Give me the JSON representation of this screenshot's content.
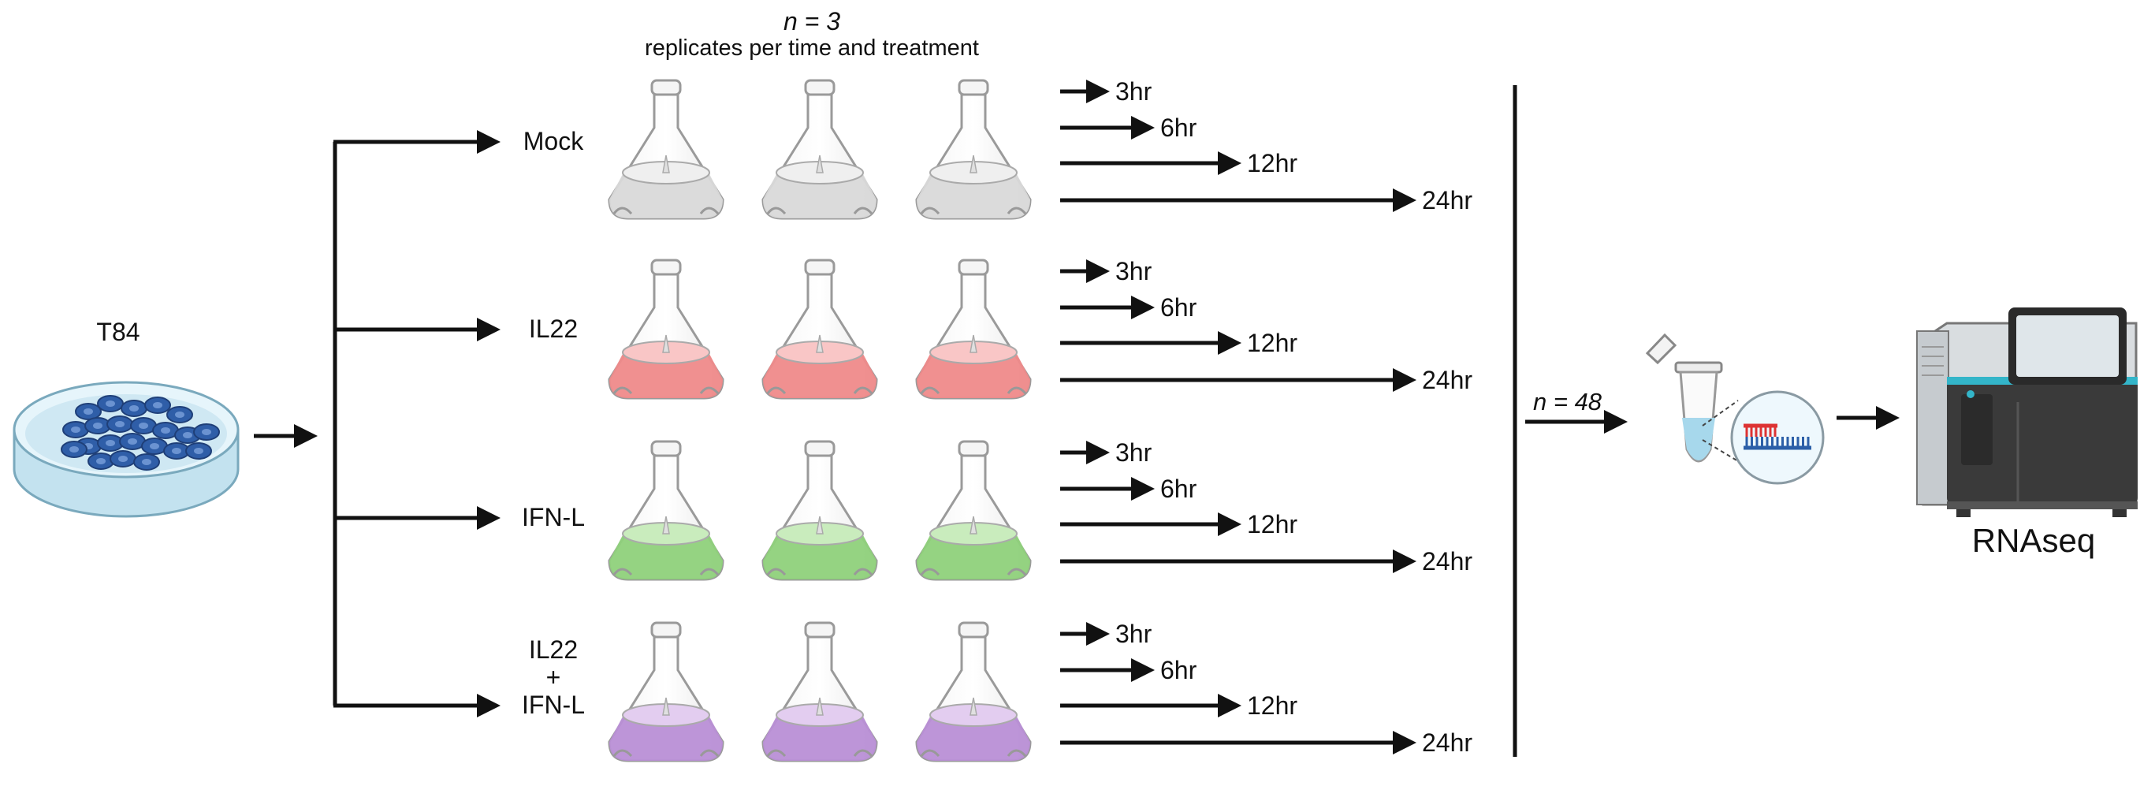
{
  "header": {
    "replicates_count": "n = 3",
    "replicates_desc": "replicates per time and treatment"
  },
  "source": {
    "label": "T84"
  },
  "treatments": [
    {
      "label_lines": [
        "Mock"
      ],
      "liquid": "#d9d9d9",
      "liquid_light": "#efefef"
    },
    {
      "label_lines": [
        "IL22"
      ],
      "liquid": "#ef8a8a",
      "liquid_light": "#f9c6c6"
    },
    {
      "label_lines": [
        "IFN-L"
      ],
      "liquid": "#8fd17b",
      "liquid_light": "#c9ecbd"
    },
    {
      "label_lines": [
        "IL22",
        "+",
        "IFN-L"
      ],
      "liquid": "#b98fd6",
      "liquid_light": "#e3cdf0"
    }
  ],
  "time_points": [
    "3hr",
    "6hr",
    "12hr",
    "24hr"
  ],
  "pool": {
    "label": "n = 48"
  },
  "output": {
    "label": "RNAseq"
  },
  "colors": {
    "arrow": "#111111",
    "dish_cells": "#2f5ea8",
    "dish_medium": "#cfe8f3",
    "sequencer_body": "#3a3a3a",
    "sequencer_accent": "#33b5c9"
  }
}
